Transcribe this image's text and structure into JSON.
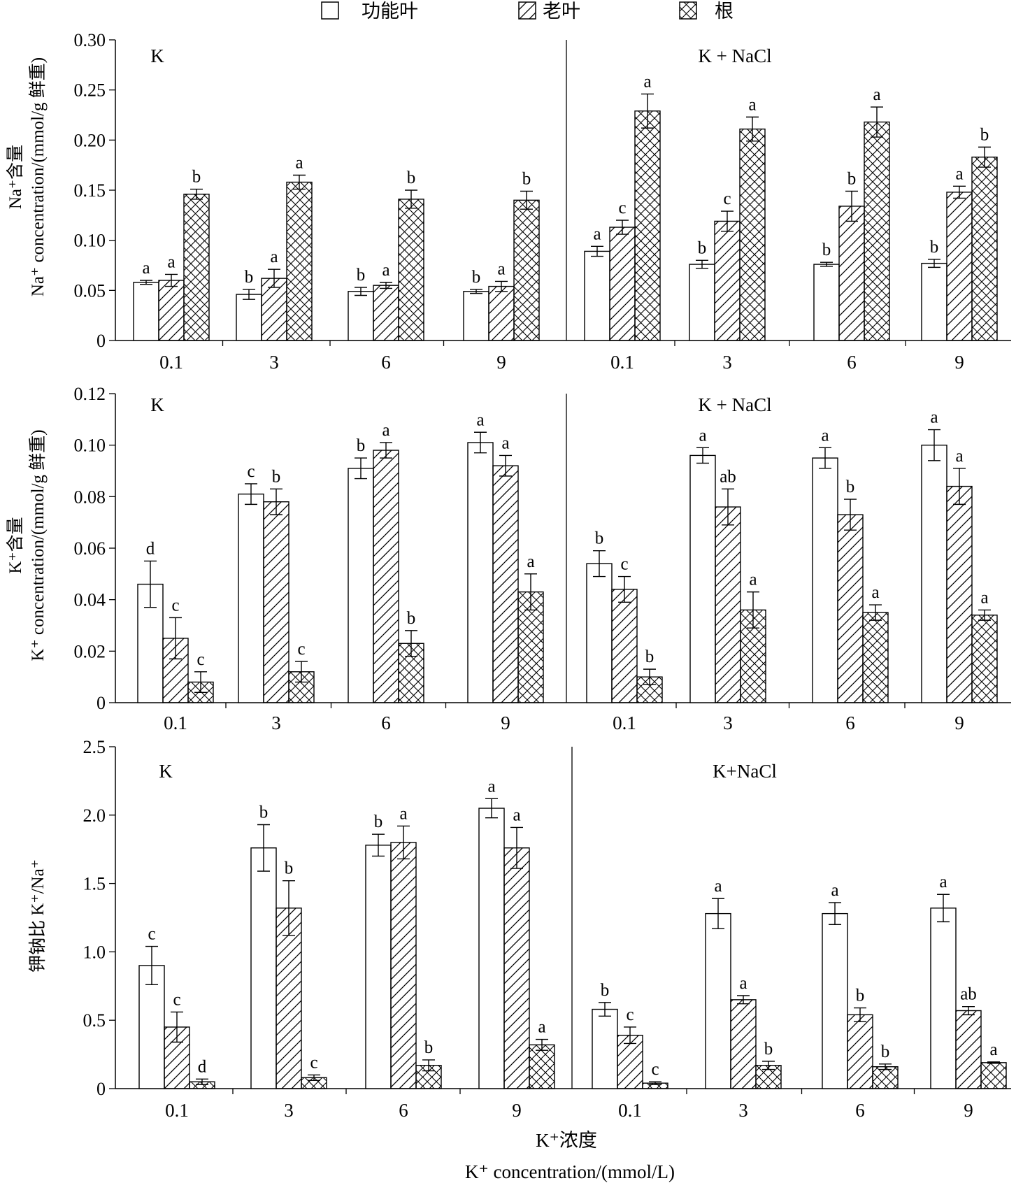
{
  "legend": [
    {
      "label": "功能叶",
      "pattern": "none"
    },
    {
      "label": "老叶",
      "pattern": "diagonal"
    },
    {
      "label": "根",
      "pattern": "crosshatch"
    }
  ],
  "x_axis": {
    "label_cn": "K⁺浓度",
    "label_en": "K⁺ concentration/(mmol/L)"
  },
  "chart_data": [
    {
      "type": "bar",
      "panel": "top",
      "ylabel_cn": "Na⁺含量",
      "ylabel_en": "Na⁺ concentration/(mmol/g 鲜重)",
      "ylim": [
        0,
        0.3
      ],
      "yticks": [
        "0",
        "0.05",
        "0.10",
        "0.15",
        "0.20",
        "0.25",
        "0.30"
      ],
      "yticks_values": [
        0,
        0.05,
        0.1,
        0.15,
        0.2,
        0.25,
        0.3
      ],
      "groups": [
        {
          "label": "K",
          "categories": [
            "0.1",
            "3",
            "6",
            "9"
          ],
          "series": [
            {
              "name": "功能叶",
              "values": [
                0.058,
                0.046,
                0.049,
                0.049
              ],
              "errors": [
                0.002,
                0.005,
                0.004,
                0.002
              ],
              "letters": [
                "a",
                "b",
                "b",
                "b"
              ]
            },
            {
              "name": "老叶",
              "values": [
                0.06,
                0.062,
                0.055,
                0.054
              ],
              "errors": [
                0.006,
                0.009,
                0.003,
                0.005
              ],
              "letters": [
                "a",
                "a",
                "a",
                "a"
              ]
            },
            {
              "name": "根",
              "values": [
                0.146,
                0.158,
                0.141,
                0.14
              ],
              "errors": [
                0.005,
                0.007,
                0.009,
                0.009
              ],
              "letters": [
                "b",
                "a",
                "b",
                "b"
              ]
            }
          ]
        },
        {
          "label": "K + NaCl",
          "categories": [
            "0.1",
            "3",
            "6",
            "9"
          ],
          "series": [
            {
              "name": "功能叶",
              "values": [
                0.089,
                0.076,
                0.076,
                0.077
              ],
              "errors": [
                0.005,
                0.004,
                0.002,
                0.004
              ],
              "letters": [
                "a",
                "b",
                "b",
                "b"
              ]
            },
            {
              "name": "老叶",
              "values": [
                0.113,
                0.119,
                0.134,
                0.148
              ],
              "errors": [
                0.007,
                0.01,
                0.015,
                0.006
              ],
              "letters": [
                "c",
                "c",
                "b",
                "a"
              ]
            },
            {
              "name": "根",
              "values": [
                0.229,
                0.211,
                0.218,
                0.183
              ],
              "errors": [
                0.017,
                0.012,
                0.015,
                0.01
              ],
              "letters": [
                "a",
                "a",
                "a",
                "b"
              ]
            }
          ]
        }
      ]
    },
    {
      "type": "bar",
      "panel": "middle",
      "ylabel_cn": "K⁺含量",
      "ylabel_en": "K⁺ concentration/(mmol/g 鲜重)",
      "ylim": [
        0,
        0.12
      ],
      "yticks": [
        "0",
        "0.02",
        "0.04",
        "0.06",
        "0.08",
        "0.10",
        "0.12"
      ],
      "yticks_values": [
        0,
        0.02,
        0.04,
        0.06,
        0.08,
        0.1,
        0.12
      ],
      "groups": [
        {
          "label": "K",
          "categories": [
            "0.1",
            "3",
            "6",
            "9"
          ],
          "series": [
            {
              "name": "功能叶",
              "values": [
                0.046,
                0.081,
                0.091,
                0.101
              ],
              "errors": [
                0.009,
                0.004,
                0.004,
                0.004
              ],
              "letters": [
                "d",
                "c",
                "b",
                "a"
              ]
            },
            {
              "name": "老叶",
              "values": [
                0.025,
                0.078,
                0.098,
                0.092
              ],
              "errors": [
                0.008,
                0.005,
                0.003,
                0.004
              ],
              "letters": [
                "c",
                "b",
                "a",
                "a"
              ]
            },
            {
              "name": "根",
              "values": [
                0.008,
                0.012,
                0.023,
                0.043
              ],
              "errors": [
                0.004,
                0.004,
                0.005,
                0.007
              ],
              "letters": [
                "c",
                "c",
                "b",
                "a"
              ]
            }
          ]
        },
        {
          "label": "K + NaCl",
          "categories": [
            "0.1",
            "3",
            "6",
            "9"
          ],
          "series": [
            {
              "name": "功能叶",
              "values": [
                0.054,
                0.096,
                0.095,
                0.1
              ],
              "errors": [
                0.005,
                0.003,
                0.004,
                0.006
              ],
              "letters": [
                "b",
                "a",
                "a",
                "a"
              ]
            },
            {
              "name": "老叶",
              "values": [
                0.044,
                0.076,
                0.073,
                0.084
              ],
              "errors": [
                0.005,
                0.007,
                0.006,
                0.007
              ],
              "letters": [
                "c",
                "ab",
                "b",
                "a"
              ]
            },
            {
              "name": "根",
              "values": [
                0.01,
                0.036,
                0.035,
                0.034
              ],
              "errors": [
                0.003,
                0.007,
                0.003,
                0.002
              ],
              "letters": [
                "b",
                "a",
                "a",
                "a"
              ]
            }
          ]
        }
      ]
    },
    {
      "type": "bar",
      "panel": "bottom",
      "ylabel_cn": "钾钠比 K⁺/Na⁺",
      "ylabel_en": "",
      "ylim": [
        0,
        2.5
      ],
      "yticks": [
        "0",
        "0.5",
        "1.0",
        "1.5",
        "2.0",
        "2.5"
      ],
      "yticks_values": [
        0,
        0.5,
        1.0,
        1.5,
        2.0,
        2.5
      ],
      "groups": [
        {
          "label": "K",
          "categories": [
            "0.1",
            "3",
            "6",
            "9"
          ],
          "series": [
            {
              "name": "功能叶",
              "values": [
                0.9,
                1.76,
                1.78,
                2.05
              ],
              "errors": [
                0.14,
                0.17,
                0.08,
                0.07
              ],
              "letters": [
                "c",
                "b",
                "b",
                "a"
              ]
            },
            {
              "name": "老叶",
              "values": [
                0.45,
                1.32,
                1.8,
                1.76
              ],
              "errors": [
                0.11,
                0.2,
                0.12,
                0.15
              ],
              "letters": [
                "c",
                "b",
                "a",
                "a"
              ]
            },
            {
              "name": "根",
              "values": [
                0.05,
                0.08,
                0.17,
                0.32
              ],
              "errors": [
                0.02,
                0.02,
                0.04,
                0.04
              ],
              "letters": [
                "d",
                "c",
                "b",
                "a"
              ]
            }
          ]
        },
        {
          "label": "K+NaCl",
          "categories": [
            "0.1",
            "3",
            "6",
            "9"
          ],
          "series": [
            {
              "name": "功能叶",
              "values": [
                0.58,
                1.28,
                1.28,
                1.32
              ],
              "errors": [
                0.05,
                0.11,
                0.08,
                0.1
              ],
              "letters": [
                "b",
                "a",
                "a",
                "a"
              ]
            },
            {
              "name": "老叶",
              "values": [
                0.39,
                0.65,
                0.54,
                0.57
              ],
              "errors": [
                0.06,
                0.03,
                0.05,
                0.03
              ],
              "letters": [
                "c",
                "a",
                "b",
                "ab"
              ]
            },
            {
              "name": "根",
              "values": [
                0.04,
                0.17,
                0.16,
                0.19
              ],
              "errors": [
                0.01,
                0.03,
                0.02,
                0.005
              ],
              "letters": [
                "c",
                "b",
                "b",
                "a"
              ]
            }
          ]
        }
      ]
    }
  ]
}
